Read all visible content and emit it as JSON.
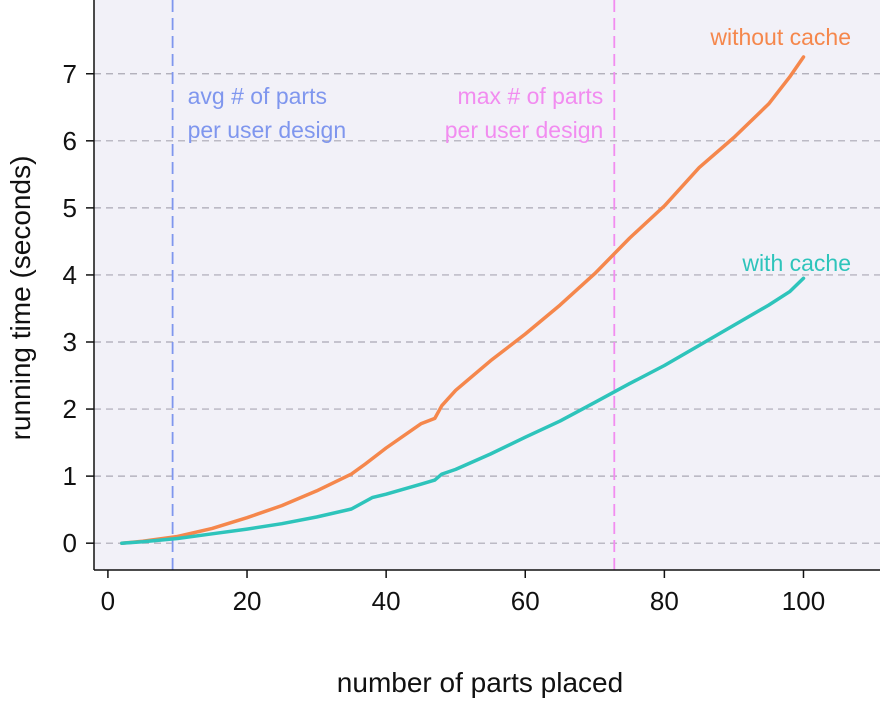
{
  "chart_data": {
    "type": "line",
    "title": "",
    "xlabel": "number of parts placed",
    "ylabel": "running time (seconds)",
    "xlim": [
      -2,
      111
    ],
    "ylim": [
      -0.4,
      8.1
    ],
    "x_ticks": [
      0,
      20,
      40,
      60,
      80,
      100
    ],
    "y_ticks": [
      0,
      1,
      2,
      3,
      4,
      5,
      6,
      7
    ],
    "grid": "horizontal dashed",
    "background": "#f2f1f8",
    "series": [
      {
        "name": "without cache",
        "color": "#f5874c",
        "x": [
          2,
          5,
          10,
          15,
          20,
          25,
          30,
          35,
          37,
          40,
          45,
          47,
          48,
          50,
          55,
          60,
          65,
          70,
          75,
          80,
          85,
          90,
          95,
          98,
          100
        ],
        "values": [
          0.0,
          0.03,
          0.1,
          0.22,
          0.38,
          0.56,
          0.78,
          1.03,
          1.18,
          1.42,
          1.78,
          1.86,
          2.05,
          2.28,
          2.72,
          3.12,
          3.55,
          4.02,
          4.55,
          5.03,
          5.6,
          6.05,
          6.55,
          6.95,
          7.25
        ]
      },
      {
        "name": "with cache",
        "color": "#2ec4bb",
        "x": [
          2,
          5,
          10,
          15,
          20,
          25,
          30,
          35,
          38,
          40,
          45,
          47,
          48,
          50,
          55,
          60,
          65,
          70,
          75,
          80,
          85,
          90,
          95,
          98,
          100
        ],
        "values": [
          0.0,
          0.02,
          0.07,
          0.14,
          0.21,
          0.29,
          0.39,
          0.51,
          0.68,
          0.73,
          0.88,
          0.94,
          1.03,
          1.1,
          1.33,
          1.58,
          1.82,
          2.1,
          2.38,
          2.65,
          2.95,
          3.25,
          3.55,
          3.75,
          3.95
        ]
      }
    ],
    "vertical_lines": [
      {
        "x": 9.3,
        "color": "#7f96ee",
        "label_lines": [
          "avg # of parts",
          "per user design"
        ]
      },
      {
        "x": 72.8,
        "color": "#f28cf0",
        "label_lines": [
          "max # of parts",
          "per user design"
        ]
      }
    ]
  }
}
